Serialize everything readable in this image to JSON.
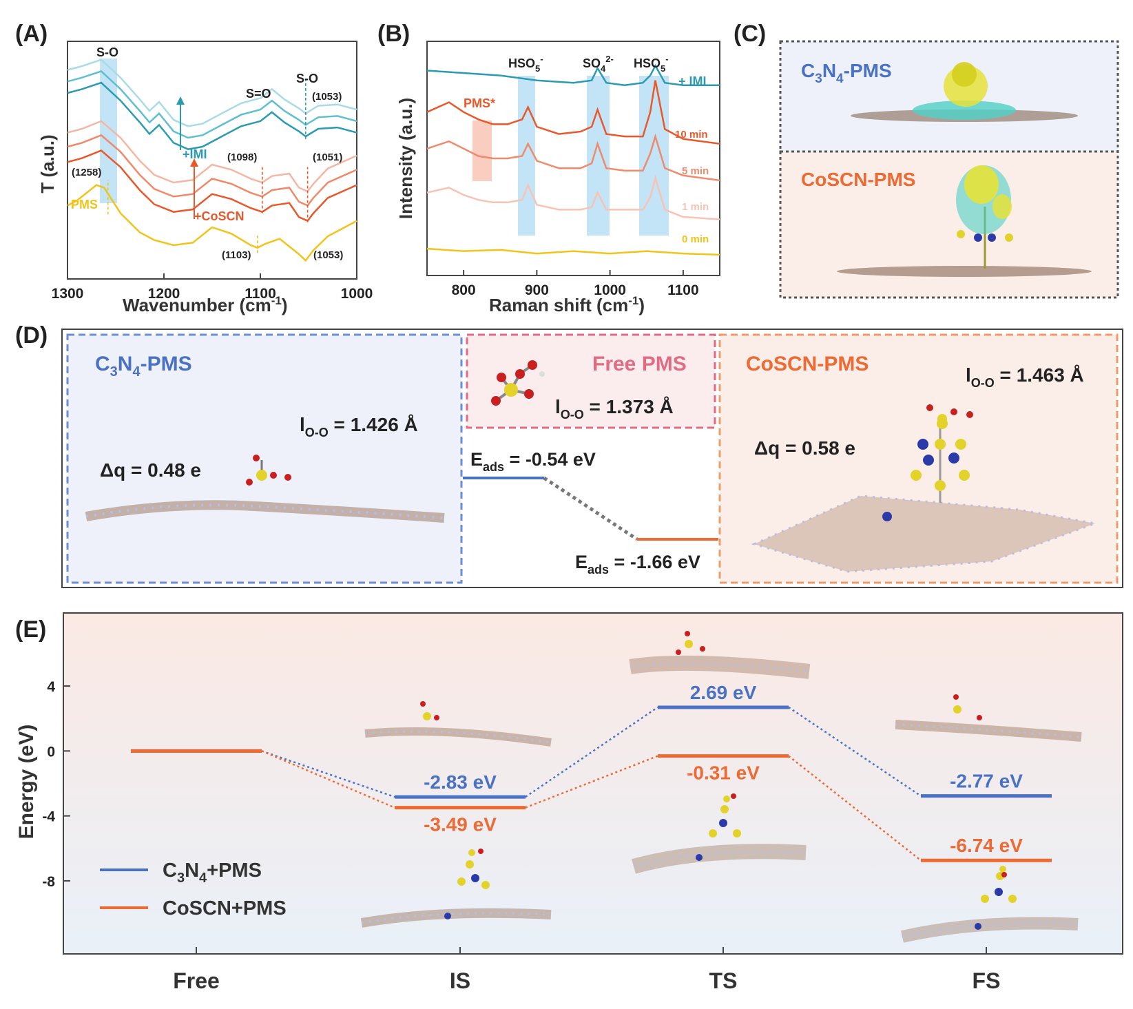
{
  "panels": {
    "A": {
      "label": "(A)",
      "xlabel": "Wavenumber (cm",
      "xlabel_sup": "-1",
      "xlabel_end": ")",
      "ylabel": "T (a.u.)",
      "peak_labels": {
        "so_left": "S-O",
        "s_eq_o": "S=O",
        "so_right": "S-O"
      },
      "annotations": {
        "w1258": "(1258)",
        "w1098": "(1098)",
        "w1051": "(1051)",
        "w1053_top": "(1053)",
        "w1103": "(1103)",
        "w1053_bottom": "(1053)",
        "pms": "PMS",
        "imi": "+IMI",
        "coscn": "+CoSCN"
      }
    },
    "B": {
      "label": "(B)",
      "xlabel": "Raman shift (cm",
      "xlabel_sup": "-1",
      "xlabel_end": ")",
      "ylabel": "Intensity (a.u.)",
      "band_labels": {
        "hso5_a": "HSO",
        "hso5_a_sub": "5",
        "hso5_a_sup": "-",
        "so4": "SO",
        "so4_sub": "4",
        "so4_sup": "2-",
        "hso5_b": "HSO",
        "hso5_b_sub": "5",
        "hso5_b_sup": "-",
        "pms_star": "PMS*"
      },
      "curve_labels": {
        "imi": "+ IMI",
        "t10": "10 min",
        "t5": "5 min",
        "t1": "1 min",
        "t0": "0 min"
      }
    },
    "C": {
      "label": "(C)",
      "top": {
        "t1": "C",
        "s1": "3",
        "t2": "N",
        "s2": "4",
        "t3": "-PMS"
      },
      "bottom": "CoSCN-PMS"
    },
    "D": {
      "label": "(D)",
      "left": {
        "t1": "C",
        "s1": "3",
        "t2": "N",
        "s2": "4",
        "t3": "-PMS",
        "l_main": "l",
        "l_sub": "O-O",
        "l_val": " = 1.426 Å",
        "dq": "Δq = 0.48 e"
      },
      "middle": {
        "title": "Free PMS",
        "l_main": "l",
        "l_sub": "O-O",
        "l_val": " = 1.373 Å",
        "e1_main": "E",
        "e1_sub": "ads",
        "e1_val": " = -0.54 eV",
        "e2_main": "E",
        "e2_sub": "ads",
        "e2_val": " = -1.66 eV"
      },
      "right": {
        "title": "CoSCN-PMS",
        "l_main": "l",
        "l_sub": "O-O",
        "l_val": " = 1.463 Å",
        "dq": "Δq = 0.58 e"
      }
    },
    "E": {
      "label": "(E)",
      "ylabel": "Energy (eV)",
      "legend": {
        "c3n4": {
          "t1": "C",
          "s1": "3",
          "t2": "N",
          "s2": "4",
          "t3": "+PMS"
        },
        "coscn": "CoSCN+PMS"
      },
      "value_labels": {
        "c3n4": [
          "-2.83 eV",
          "2.69 eV",
          "-2.77 eV"
        ],
        "coscn": [
          "-3.49 eV",
          "-0.31 eV",
          "-6.74 eV"
        ]
      }
    }
  },
  "colors": {
    "c3n4": "#4a72c4",
    "coscn": "#ee6a33",
    "pms": "#f0c419",
    "imi": "#2f9fb4",
    "band": "#b9dff5"
  },
  "chart_data": [
    {
      "type": "line",
      "panel": "A",
      "xlabel": "Wavenumber (cm-1)",
      "ylabel": "T (a.u.)",
      "xlim": [
        1300,
        1000
      ],
      "xticks": [
        1300,
        1200,
        1100,
        1000
      ],
      "series": [
        {
          "name": "PMS",
          "color": "#f0c419",
          "x": [
            1300,
            1290,
            1270,
            1262,
            1245,
            1225,
            1210,
            1190,
            1170,
            1150,
            1130,
            1110,
            1103,
            1095,
            1080,
            1060,
            1053,
            1045,
            1030,
            1015,
            1000
          ],
          "y": [
            5.2,
            5.6,
            6.8,
            6.6,
            4.6,
            3.1,
            2.5,
            2.1,
            2.3,
            3.5,
            3.0,
            2.1,
            1.9,
            2.2,
            2.6,
            1.4,
            0.9,
            1.7,
            2.8,
            3.4,
            4.0
          ]
        },
        {
          "name": "+CoSCN 1",
          "color": "#e8582a",
          "x": [
            1300,
            1285,
            1265,
            1245,
            1225,
            1210,
            1190,
            1170,
            1150,
            1130,
            1110,
            1098,
            1088,
            1070,
            1060,
            1051,
            1045,
            1030,
            1015,
            1000
          ],
          "y": [
            8.6,
            8.9,
            9.5,
            8.2,
            6.4,
            5.3,
            4.7,
            4.9,
            6.1,
            5.7,
            5.0,
            4.7,
            5.2,
            5.4,
            4.3,
            4.0,
            4.6,
            5.8,
            6.3,
            6.8
          ]
        },
        {
          "name": "+CoSCN 2",
          "color": "#f0896a",
          "x": [
            1300,
            1285,
            1265,
            1245,
            1225,
            1210,
            1190,
            1170,
            1150,
            1130,
            1110,
            1098,
            1088,
            1070,
            1060,
            1051,
            1045,
            1030,
            1015,
            1000
          ],
          "y": [
            9.8,
            10.1,
            10.7,
            9.4,
            7.6,
            6.5,
            5.9,
            6.1,
            7.3,
            6.9,
            6.2,
            5.9,
            6.4,
            6.6,
            5.5,
            5.2,
            5.8,
            7.0,
            7.5,
            8.0
          ]
        },
        {
          "name": "+CoSCN 3",
          "color": "#f4b7a4",
          "x": [
            1300,
            1285,
            1265,
            1245,
            1225,
            1210,
            1190,
            1170,
            1150,
            1130,
            1110,
            1098,
            1088,
            1070,
            1060,
            1051,
            1045,
            1030,
            1015,
            1000
          ],
          "y": [
            10.9,
            11.2,
            11.8,
            10.5,
            8.7,
            7.6,
            7.0,
            7.2,
            8.4,
            8.0,
            7.3,
            7.0,
            7.5,
            7.7,
            6.6,
            6.3,
            6.9,
            8.1,
            8.6,
            9.1
          ]
        },
        {
          "name": "+IMI 1",
          "color": "#2a9bb0",
          "x": [
            1300,
            1285,
            1265,
            1245,
            1225,
            1215,
            1205,
            1190,
            1175,
            1160,
            1140,
            1120,
            1100,
            1088,
            1075,
            1060,
            1053,
            1040,
            1020,
            1000
          ],
          "y": [
            14.0,
            14.3,
            14.8,
            13.4,
            11.7,
            10.8,
            11.5,
            10.1,
            9.6,
            9.8,
            10.6,
            11.4,
            11.8,
            12.5,
            11.7,
            11.0,
            10.6,
            11.2,
            11.3,
            10.9
          ]
        },
        {
          "name": "+IMI 2",
          "color": "#5fbfd1",
          "x": [
            1300,
            1285,
            1265,
            1245,
            1225,
            1215,
            1205,
            1190,
            1175,
            1160,
            1140,
            1120,
            1100,
            1088,
            1075,
            1060,
            1053,
            1040,
            1020,
            1000
          ],
          "y": [
            14.9,
            15.2,
            15.7,
            14.3,
            12.6,
            11.7,
            12.4,
            11.0,
            10.5,
            10.7,
            11.5,
            12.3,
            12.7,
            13.4,
            12.6,
            11.9,
            11.5,
            12.1,
            12.2,
            11.8
          ]
        },
        {
          "name": "+IMI 3",
          "color": "#a8dbe6",
          "x": [
            1300,
            1285,
            1265,
            1245,
            1225,
            1215,
            1205,
            1190,
            1175,
            1160,
            1140,
            1120,
            1100,
            1088,
            1075,
            1060,
            1053,
            1040,
            1020,
            1000
          ],
          "y": [
            15.8,
            16.1,
            16.6,
            15.2,
            13.5,
            12.6,
            13.3,
            11.9,
            11.4,
            11.6,
            12.4,
            13.2,
            13.6,
            14.3,
            13.5,
            12.8,
            12.4,
            13.0,
            13.1,
            12.7
          ]
        }
      ]
    },
    {
      "type": "line",
      "panel": "B",
      "xlabel": "Raman shift (cm-1)",
      "ylabel": "Intensity (a.u.)",
      "xlim": [
        750,
        1150
      ],
      "xticks": [
        800,
        900,
        1000,
        1100
      ],
      "series": [
        {
          "name": "0 min",
          "color": "#f0c419",
          "x": [
            750,
            800,
            850,
            900,
            950,
            1000,
            1050,
            1100,
            1150
          ],
          "y": [
            0.3,
            0.2,
            0.25,
            0.1,
            0.2,
            0.1,
            0.2,
            0.1,
            0.05
          ]
        },
        {
          "name": "1 min",
          "color": "#f7c3b2",
          "x": [
            750,
            780,
            800,
            820,
            840,
            860,
            880,
            888,
            900,
            930,
            960,
            975,
            983,
            995,
            1020,
            1045,
            1055,
            1062,
            1075,
            1100,
            1150
          ],
          "y": [
            2.6,
            2.8,
            2.5,
            2.3,
            2.2,
            2.2,
            2.3,
            2.9,
            2.1,
            1.9,
            1.9,
            2.0,
            2.6,
            1.9,
            1.9,
            1.9,
            2.4,
            3.2,
            1.9,
            1.6,
            1.5
          ]
        },
        {
          "name": "5 min",
          "color": "#ef8b6c",
          "x": [
            750,
            780,
            800,
            820,
            840,
            860,
            880,
            888,
            900,
            930,
            960,
            975,
            983,
            995,
            1020,
            1045,
            1055,
            1062,
            1075,
            1100,
            1150
          ],
          "y": [
            4.4,
            4.7,
            4.4,
            4.1,
            4.0,
            4.0,
            4.1,
            4.6,
            3.9,
            3.6,
            3.6,
            3.8,
            4.6,
            3.6,
            3.5,
            3.5,
            4.2,
            4.9,
            3.6,
            3.3,
            3.1
          ]
        },
        {
          "name": "10 min",
          "color": "#e8582a",
          "x": [
            750,
            780,
            800,
            820,
            840,
            860,
            880,
            888,
            900,
            930,
            960,
            975,
            983,
            995,
            1020,
            1045,
            1055,
            1062,
            1075,
            1100,
            1150
          ],
          "y": [
            5.9,
            6.3,
            5.9,
            5.6,
            5.4,
            5.4,
            5.6,
            6.1,
            5.3,
            5.0,
            5.1,
            5.3,
            6.0,
            5.0,
            4.9,
            4.9,
            5.9,
            7.2,
            5.2,
            4.8,
            4.6
          ]
        },
        {
          "name": "+ IMI",
          "color": "#2a9bb0",
          "x": [
            750,
            800,
            850,
            900,
            950,
            975,
            983,
            995,
            1020,
            1045,
            1055,
            1062,
            1075,
            1100,
            1150
          ],
          "y": [
            7.6,
            7.5,
            7.4,
            7.2,
            7.1,
            7.2,
            7.7,
            7.1,
            7.0,
            7.1,
            7.4,
            7.8,
            7.1,
            7.0,
            7.0
          ]
        }
      ]
    },
    {
      "type": "line",
      "panel": "E",
      "ylabel": "Energy (eV)",
      "categories": [
        "Free",
        "IS",
        "TS",
        "FS"
      ],
      "yticks": [
        4,
        0,
        -4,
        -8
      ],
      "ylim": [
        -12.5,
        8.5
      ],
      "series": [
        {
          "name": "C3N4+PMS",
          "color": "#4a72c4",
          "values": [
            0,
            -2.83,
            2.69,
            -2.77
          ]
        },
        {
          "name": "CoSCN+PMS",
          "color": "#ee6a33",
          "values": [
            0,
            -3.49,
            -0.31,
            -6.74
          ]
        }
      ]
    }
  ]
}
